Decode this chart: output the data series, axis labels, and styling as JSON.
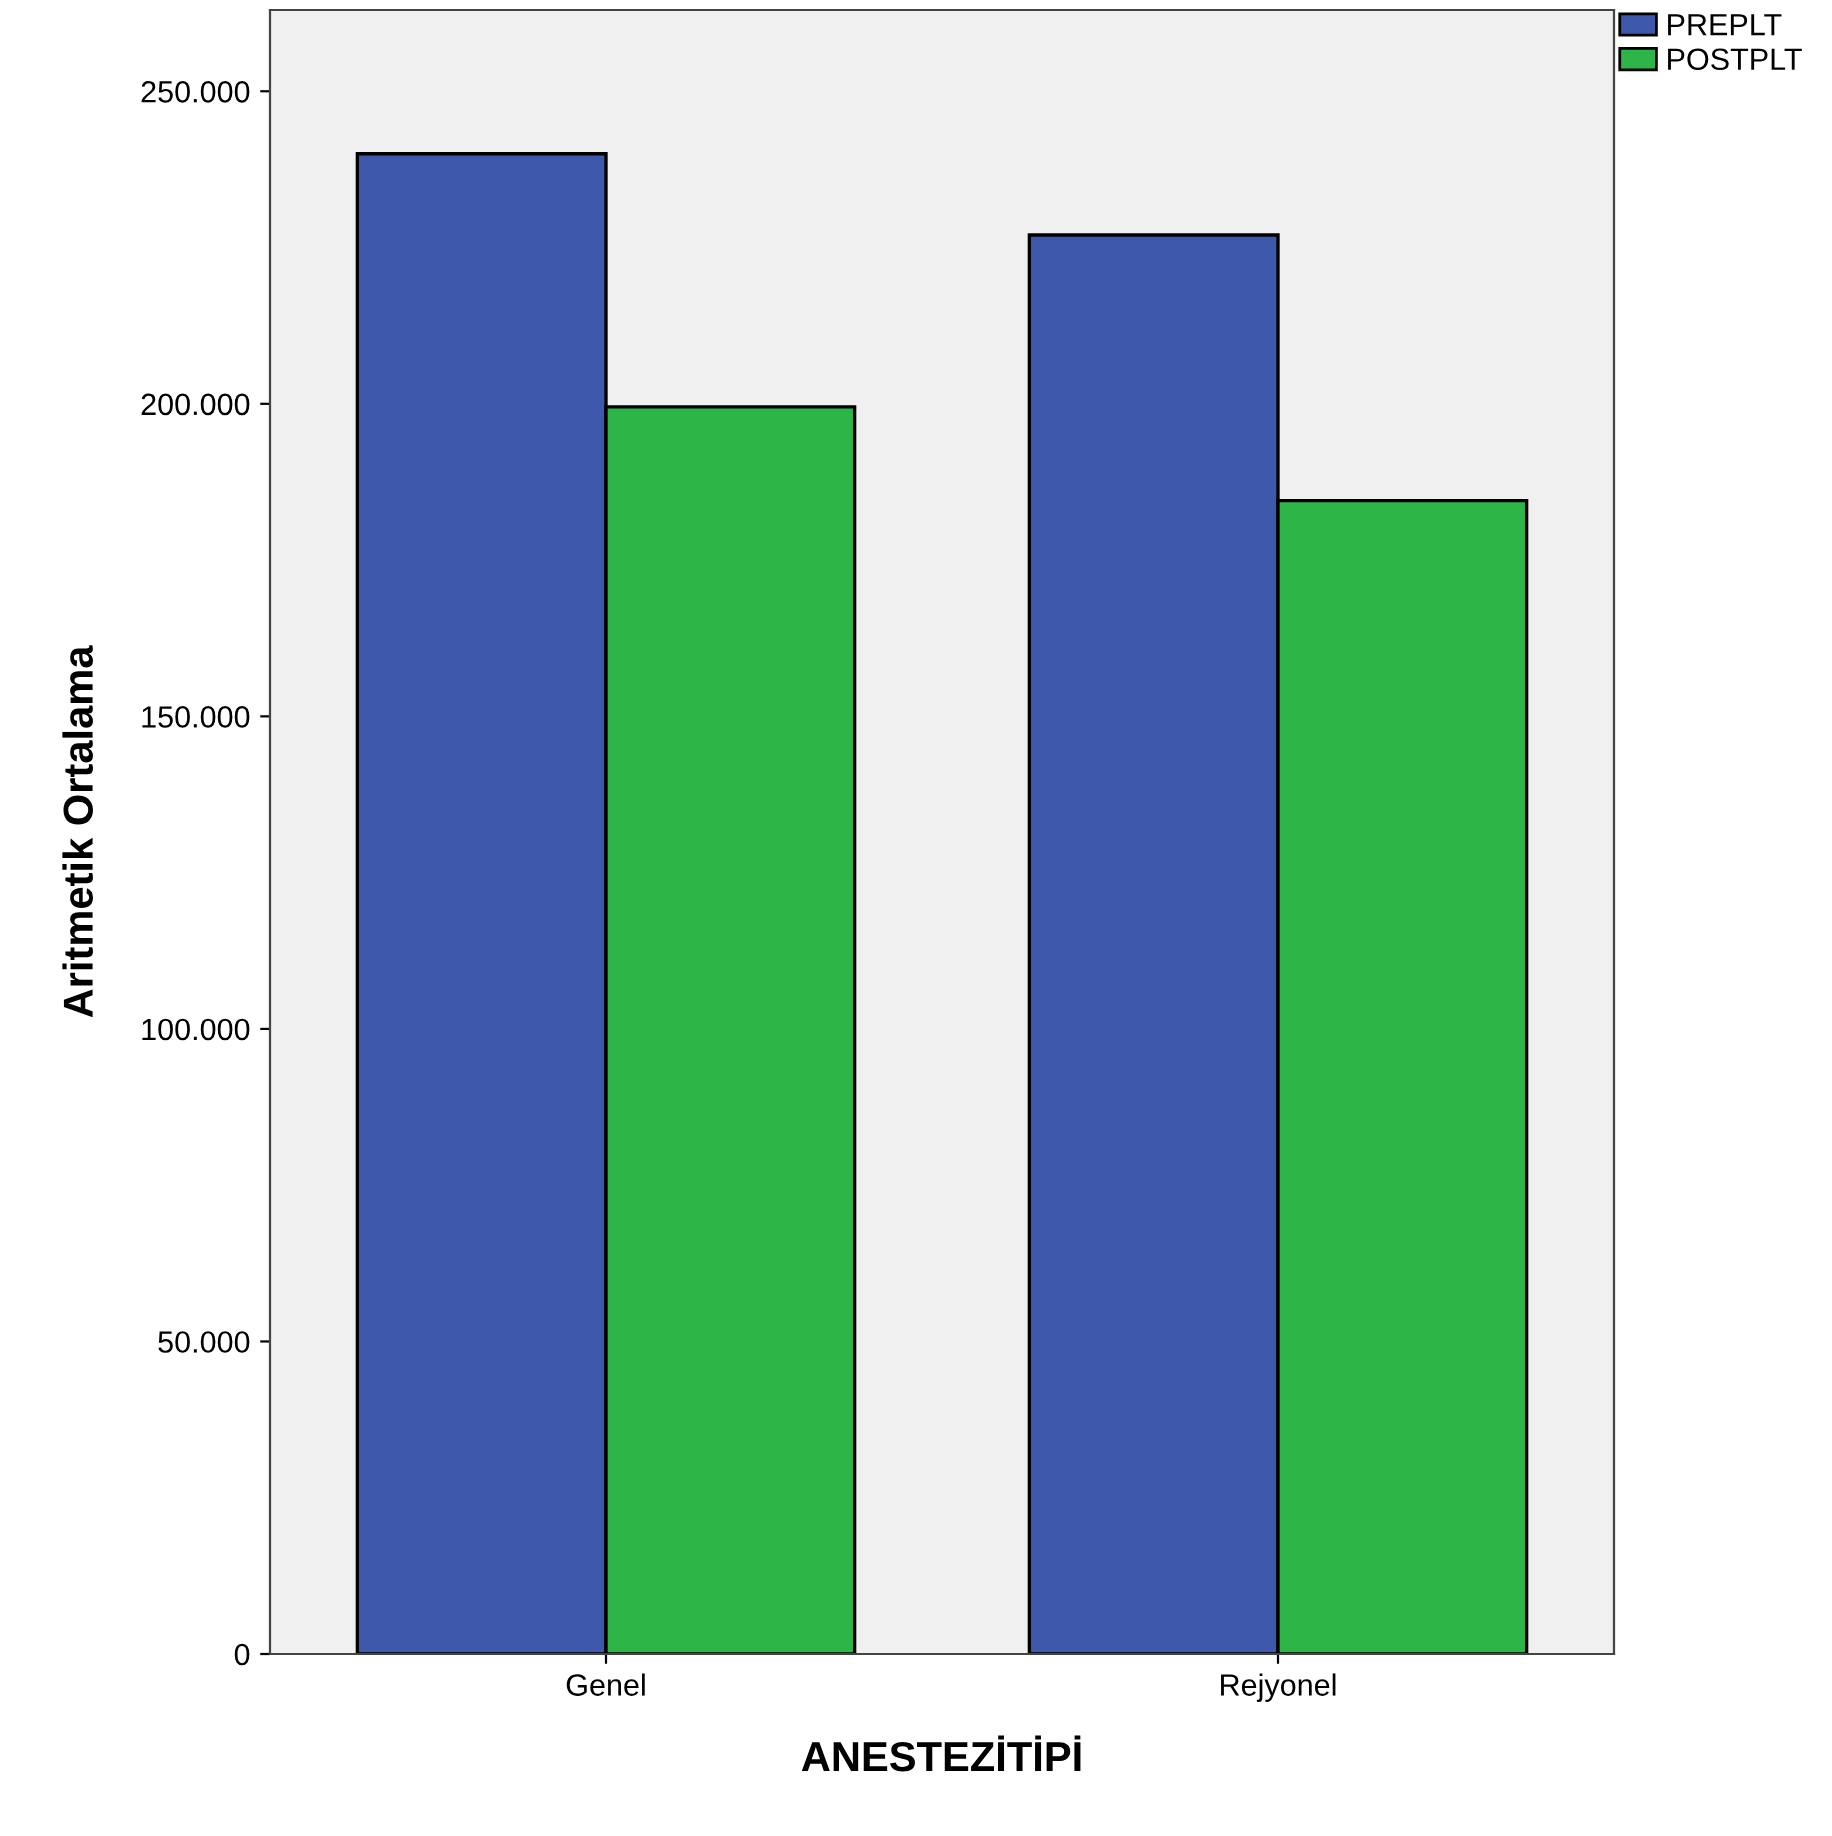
{
  "chart_data": {
    "type": "bar",
    "xlabel": "ANESTEZİTİPİ",
    "ylabel": "Aritmetik Ortalama",
    "categories": [
      "Genel",
      "Rejyonel"
    ],
    "series": [
      {
        "name": "PREPLT",
        "color": "#3e58ac",
        "values": [
          240000,
          227000
        ]
      },
      {
        "name": "POSTPLT",
        "color": "#2eb547",
        "values": [
          199500,
          184500
        ]
      }
    ],
    "ylim": [
      0,
      263000
    ],
    "yticks": [
      0,
      {
        "value": 50000,
        "label": "50.000"
      },
      {
        "value": 100000,
        "label": "100.000"
      },
      {
        "value": 150000,
        "label": "150.000"
      },
      {
        "value": 200000,
        "label": "200.000"
      },
      {
        "value": 250000,
        "label": "250.000"
      }
    ],
    "grid": false,
    "legend": "top right"
  }
}
